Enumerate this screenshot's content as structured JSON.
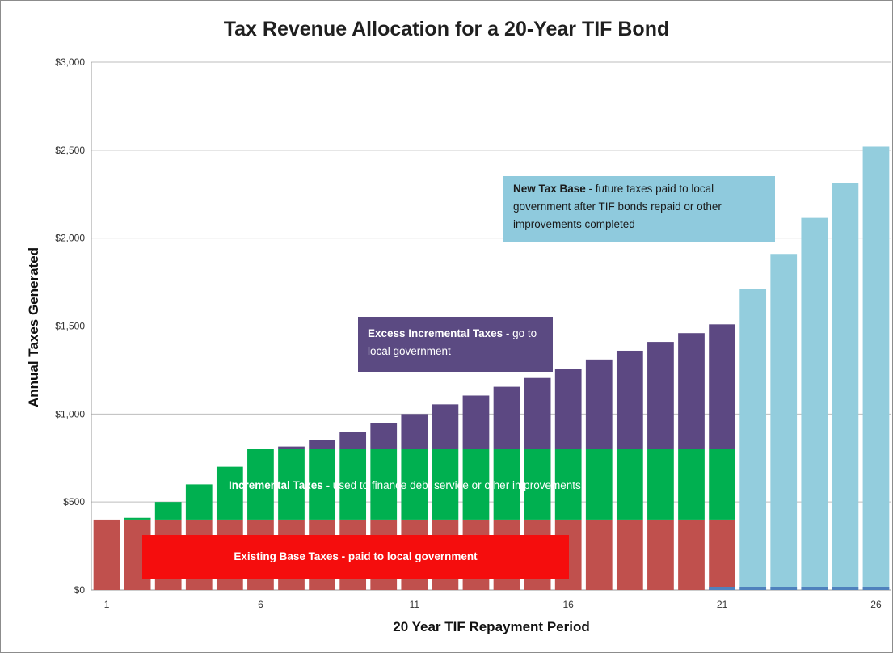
{
  "chart_data": {
    "type": "bar",
    "stacked": true,
    "title": "Tax Revenue Allocation for a 20-Year TIF Bond",
    "xlabel": "20 Year TIF Repayment Period",
    "ylabel": "Annual Taxes Generated",
    "ylim": [
      0,
      3000
    ],
    "yticks": [
      "$0",
      "$500",
      "$1,000",
      "$1,500",
      "$2,000",
      "$2,500",
      "$3,000"
    ],
    "ytick_values": [
      0,
      500,
      1000,
      1500,
      2000,
      2500,
      3000
    ],
    "xtick_labels": [
      "1",
      "6",
      "11",
      "16",
      "21",
      "26"
    ],
    "xtick_positions": [
      1,
      6,
      11,
      16,
      21,
      26
    ],
    "grid": true,
    "categories": [
      1,
      2,
      3,
      4,
      5,
      6,
      7,
      8,
      9,
      10,
      11,
      12,
      13,
      14,
      15,
      16,
      17,
      18,
      19,
      20,
      21,
      22,
      23,
      24,
      25,
      26
    ],
    "series": [
      {
        "color": "#c0504d",
        "values": [
          400,
          400,
          400,
          400,
          400,
          400,
          400,
          400,
          400,
          400,
          400,
          400,
          400,
          400,
          400,
          400,
          400,
          400,
          400,
          400,
          400,
          0,
          0,
          0,
          0,
          0
        ]
      },
      {
        "color": "#00b050",
        "values": [
          0,
          10,
          100,
          200,
          300,
          400,
          400,
          400,
          400,
          400,
          400,
          400,
          400,
          400,
          400,
          400,
          400,
          400,
          400,
          400,
          400,
          0,
          0,
          0,
          0,
          0
        ]
      },
      {
        "color": "#5c4882",
        "values": [
          0,
          0,
          0,
          0,
          0,
          0,
          15,
          50,
          100,
          150,
          200,
          255,
          305,
          355,
          405,
          455,
          510,
          560,
          610,
          660,
          710,
          0,
          0,
          0,
          0,
          0
        ]
      },
      {
        "color": "#93cddd",
        "values": [
          0,
          0,
          0,
          0,
          0,
          0,
          0,
          0,
          0,
          0,
          0,
          0,
          0,
          0,
          0,
          0,
          0,
          0,
          0,
          0,
          0,
          1710,
          1910,
          2115,
          2315,
          2520
        ]
      }
    ],
    "annotations": {
      "new_tax_base_bold": "New Tax Base",
      "new_tax_base_rest": " - future taxes paid to local government after TIF bonds repaid or other improvements completed",
      "excess_bold": "Excess Incremental Taxes",
      "excess_rest": " - go to local government",
      "incremental_bold": "Incremental Taxes",
      "incremental_rest": " - used to finance debt service or other improvements",
      "existing": "Existing Base Taxes - paid to local government"
    }
  }
}
